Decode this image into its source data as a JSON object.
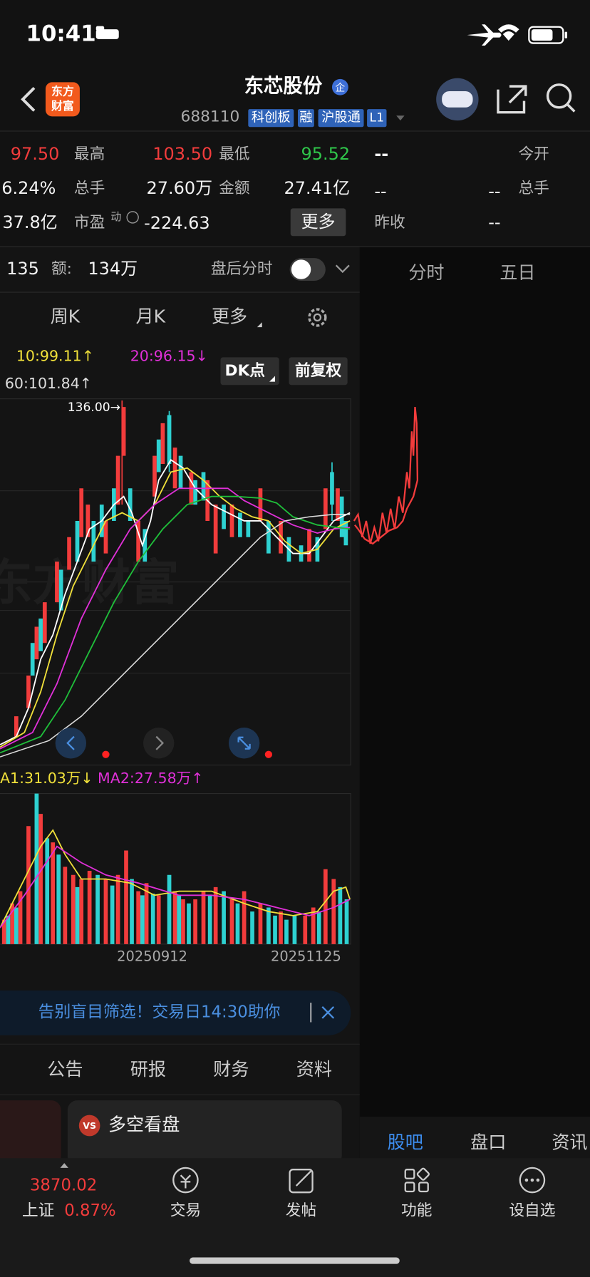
{
  "status_bar": {
    "time": "10:41"
  },
  "header": {
    "logo_line1": "东方",
    "logo_line2": "财富",
    "title": "东芯股份",
    "badge": "企",
    "code": "688110",
    "tags": [
      "科创板",
      "融",
      "沪股通",
      "L1"
    ]
  },
  "quote": {
    "row1": [
      "97.50",
      "最高",
      "103.50",
      "最低",
      "95.52",
      "--",
      "今开"
    ],
    "row2": [
      "6.24%",
      "总手",
      "27.60万",
      "金额",
      "27.41亿",
      "--",
      "--",
      "总手"
    ],
    "row3": [
      "37.8亿",
      "市盈",
      "动",
      "-224.63",
      "更多",
      "昨收",
      "--"
    ]
  },
  "intraday_bar": {
    "volume": "135",
    "amount_label": "额:",
    "amount": "134万",
    "after_hours": "盘后分时"
  },
  "right_tabs": [
    "分时",
    "五日"
  ],
  "period_tabs": [
    "周K",
    "月K",
    "更多"
  ],
  "ma": [
    "10:99.11↑",
    "20:96.15↓",
    "60:101.84↑"
  ],
  "buttons": [
    "DK点",
    "前复权"
  ],
  "high_marker": "136.00→",
  "volume_ma": [
    "A1:31.03万↓",
    "MA2:27.58万↑"
  ],
  "dates": [
    "20250912",
    "20251125"
  ],
  "banner": "告别盲目筛选！交易日14:30助你",
  "info_tabs": [
    "公告",
    "研报",
    "财务",
    "资料"
  ],
  "card": {
    "badge": "VS",
    "title": "多空看盘"
  },
  "bottom_tabs": [
    "股吧",
    "盘口",
    "资讯"
  ],
  "nav": {
    "index_value": "3870.02",
    "index_name": "上证",
    "index_change": "0.87%",
    "items": [
      "交易",
      "发帖",
      "功能",
      "设自选"
    ]
  }
}
